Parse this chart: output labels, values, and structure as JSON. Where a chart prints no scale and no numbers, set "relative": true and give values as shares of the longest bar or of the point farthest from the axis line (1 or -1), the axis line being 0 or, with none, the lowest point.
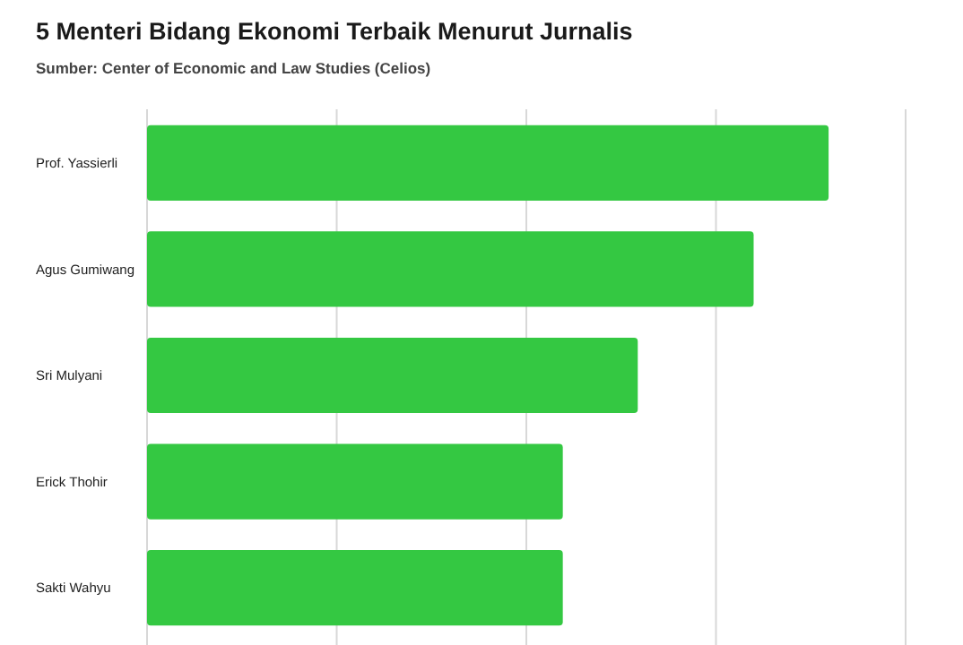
{
  "chart_data": {
    "type": "bar",
    "orientation": "horizontal",
    "relative": true,
    "title": "5 Menteri Bidang Ekonomi Terbaik Menurut Jurnalis",
    "subtitle": "Sumber: Center of Economic and Law Studies (Celios)",
    "categories": [
      "Prof. Yassierli",
      "Agus Gumiwang",
      "Sri Mulyani",
      "Erick Thohir",
      "Sakti Wahyu"
    ],
    "values": [
      1,
      0.89,
      0.72,
      0.61,
      0.61
    ],
    "color": "#34c842",
    "grid": "x"
  }
}
